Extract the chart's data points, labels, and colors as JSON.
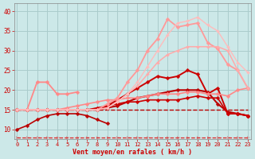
{
  "x": [
    0,
    1,
    2,
    3,
    4,
    5,
    6,
    7,
    8,
    9,
    10,
    11,
    12,
    13,
    14,
    15,
    16,
    17,
    18,
    19,
    20,
    21,
    22,
    23
  ],
  "background_color": "#cce8e8",
  "grid_color": "#aacccc",
  "xlabel": "Vent moyen/en rafales ( km/h )",
  "xlabel_color": "#cc0000",
  "tick_color": "#cc0000",
  "yticks": [
    10,
    15,
    20,
    25,
    30,
    35,
    40
  ],
  "ylim": [
    7.5,
    42
  ],
  "xlim": [
    -0.3,
    23.3
  ],
  "lines": [
    {
      "y": [
        8,
        8,
        8,
        8,
        8,
        8,
        8,
        8,
        8,
        8,
        8,
        8,
        8,
        8,
        8,
        8,
        8,
        8,
        8,
        8,
        8,
        8,
        8,
        8
      ],
      "color": "#dd2222",
      "linewidth": 0.9,
      "marker": "4",
      "linestyle": "--",
      "markersize": 4
    },
    {
      "y": [
        10,
        11,
        12.5,
        13.5,
        14,
        14,
        14,
        13.5,
        12.5,
        11.5,
        null,
        null,
        null,
        null,
        null,
        null,
        null,
        null,
        null,
        null,
        null,
        null,
        null,
        null
      ],
      "color": "#bb0000",
      "linewidth": 1.2,
      "marker": "D",
      "linestyle": "-",
      "markersize": 2.5
    },
    {
      "y": [
        15,
        15,
        15,
        15,
        15,
        15,
        15,
        15,
        15,
        15.5,
        16,
        17,
        18,
        18.5,
        19,
        19.5,
        20,
        20,
        20,
        19.5,
        16.5,
        14.5,
        14,
        13.5
      ],
      "color": "#bb0000",
      "linewidth": 1.5,
      "marker": "D",
      "linestyle": "-",
      "markersize": 2.5
    },
    {
      "y": [
        15,
        15,
        15,
        15,
        15,
        15,
        15,
        15,
        15,
        15,
        15,
        15,
        15,
        15,
        15,
        15,
        15,
        15,
        15,
        15,
        15,
        15,
        15,
        15
      ],
      "color": "#bb0000",
      "linewidth": 1.0,
      "marker": null,
      "linestyle": "--",
      "markersize": 0
    },
    {
      "y": [
        15,
        15,
        15,
        15,
        15,
        15,
        15,
        15,
        15.5,
        16,
        16.5,
        17,
        17,
        17.5,
        17.5,
        17.5,
        17.5,
        18,
        18.5,
        18,
        18,
        14,
        14,
        13.5
      ],
      "color": "#cc0000",
      "linewidth": 1.2,
      "marker": "D",
      "linestyle": "-",
      "markersize": 2.5
    },
    {
      "y": [
        15,
        15,
        15,
        15,
        15,
        15,
        15,
        15,
        15,
        16,
        17.5,
        19,
        20.5,
        22,
        23.5,
        23,
        23.5,
        25,
        24,
        19,
        20.5,
        14,
        14,
        13.5
      ],
      "color": "#cc0000",
      "linewidth": 1.4,
      "marker": "D",
      "linestyle": "-",
      "markersize": 2.5
    },
    {
      "y": [
        15,
        15,
        22,
        22,
        19,
        19,
        19.5,
        null,
        null,
        null,
        null,
        null,
        null,
        null,
        null,
        null,
        null,
        null,
        null,
        null,
        null,
        null,
        null,
        null
      ],
      "color": "#ff8888",
      "linewidth": 1.3,
      "marker": "D",
      "linestyle": "-",
      "markersize": 2.5
    },
    {
      "y": [
        15,
        15,
        15,
        15,
        15,
        15.5,
        16,
        16.5,
        17,
        17.5,
        17.5,
        18,
        18,
        18.5,
        19,
        19,
        19,
        19.5,
        19.5,
        19,
        19,
        18.5,
        20,
        20.5
      ],
      "color": "#ff8888",
      "linewidth": 1.2,
      "marker": "D",
      "linestyle": "-",
      "markersize": 2.5
    },
    {
      "y": [
        15,
        15,
        15,
        15,
        15,
        15,
        15,
        15,
        15,
        16.5,
        18,
        22,
        25,
        30,
        33,
        38,
        36,
        36.5,
        37,
        32,
        30.5,
        26.5,
        25,
        20.5
      ],
      "color": "#ff9999",
      "linewidth": 1.3,
      "marker": "D",
      "linestyle": "-",
      "markersize": 2.5
    },
    {
      "y": [
        15,
        15,
        15,
        15,
        15,
        15,
        15,
        15,
        15,
        15.5,
        17,
        19,
        21,
        24,
        27,
        29,
        30,
        31,
        31,
        31,
        31,
        30,
        25,
        20.5
      ],
      "color": "#ffaaaa",
      "linewidth": 1.1,
      "marker": "D",
      "linestyle": "-",
      "markersize": 2.0
    },
    {
      "y": [
        15,
        15,
        15,
        15,
        15,
        15,
        15,
        15,
        15,
        15.5,
        17,
        19,
        22,
        26,
        30,
        34,
        37,
        37.5,
        38.5,
        36.5,
        35,
        31,
        27,
        24.5
      ],
      "color": "#ffbbbb",
      "linewidth": 1.0,
      "marker": "D",
      "linestyle": "-",
      "markersize": 2.0
    }
  ]
}
